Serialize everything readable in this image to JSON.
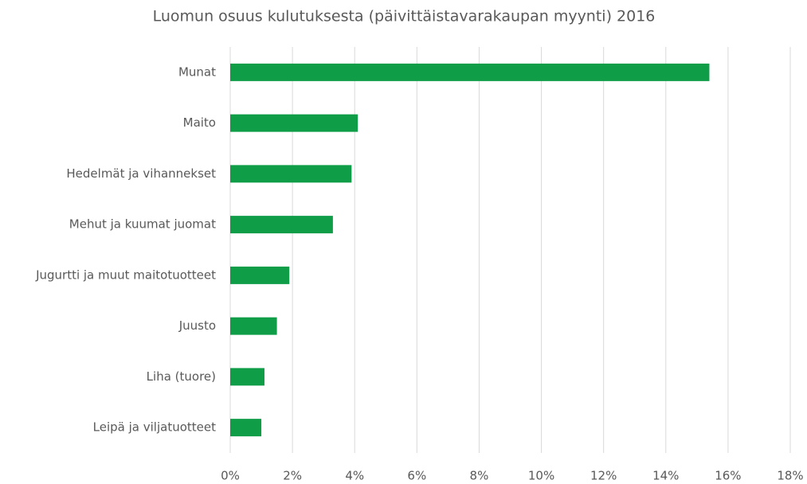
{
  "chart_data": {
    "type": "bar",
    "orientation": "horizontal",
    "title": "Luomun osuus kulutuksesta (päivittäistavarakaupan myynti) 2016",
    "categories": [
      "Munat",
      "Maito",
      "Hedelmät ja vihannekset",
      "Mehut ja kuumat juomat",
      "Jugurtti ja muut maitotuotteet",
      "Juusto",
      "Liha (tuore)",
      "Leipä ja viljatuotteet"
    ],
    "values": [
      15.4,
      4.1,
      3.9,
      3.3,
      1.9,
      1.5,
      1.1,
      1.0
    ],
    "color": "#0f9d48",
    "xlim": [
      0,
      18
    ],
    "xticks": [
      {
        "value": 0,
        "label": "0%"
      },
      {
        "value": 2,
        "label": "2%"
      },
      {
        "value": 4,
        "label": "4%"
      },
      {
        "value": 6,
        "label": "6%"
      },
      {
        "value": 8,
        "label": "8%"
      },
      {
        "value": 10,
        "label": "10%"
      },
      {
        "value": 12,
        "label": "12%"
      },
      {
        "value": 14,
        "label": "14%"
      },
      {
        "value": 16,
        "label": "16%"
      },
      {
        "value": 18,
        "label": "18%"
      }
    ],
    "grid": true
  }
}
